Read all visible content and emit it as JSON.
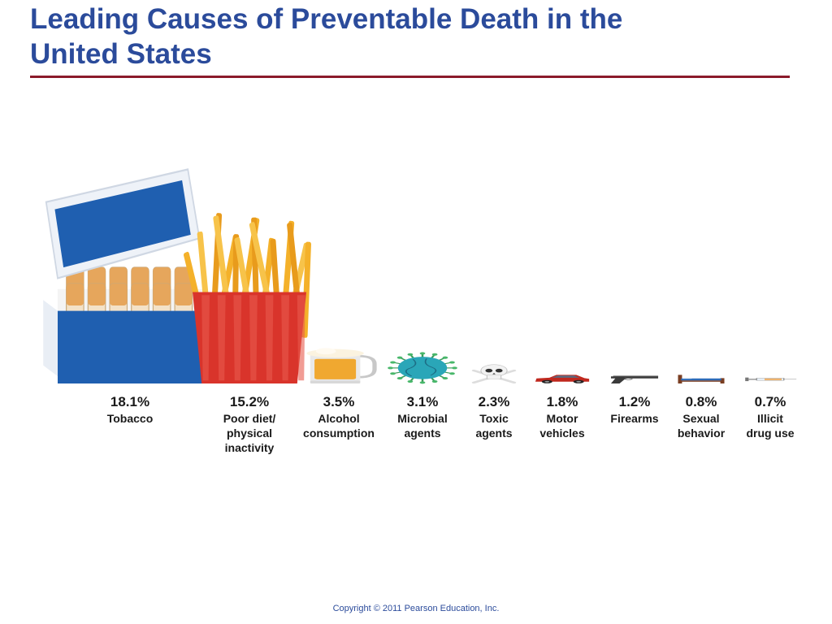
{
  "slide": {
    "title": "Leading Causes of Preventable Death in the\nUnited States",
    "footer": "Copyright © 2011 Pearson Education, Inc."
  },
  "chart_data": {
    "type": "bar",
    "title": "Leading Causes of Preventable Death in the United States",
    "xlabel": "",
    "ylabel": "",
    "unit": "%",
    "grid": false,
    "categories": [
      "Tobacco",
      "Poor diet/ physical inactivity",
      "Alcohol consumption",
      "Microbial agents",
      "Toxic agents",
      "Motor vehicles",
      "Firearms",
      "Sexual behavior",
      "Illicit drug use"
    ],
    "values": [
      18.1,
      15.2,
      3.5,
      3.1,
      2.3,
      1.8,
      1.2,
      0.8,
      0.7
    ],
    "value_labels": [
      "18.1%",
      "15.2%",
      "3.5%",
      "3.1%",
      "2.3%",
      "1.8%",
      "1.2%",
      "0.8%",
      "0.7%"
    ],
    "label_lines": [
      [
        "Tobacco"
      ],
      [
        "Poor diet/",
        "physical",
        "inactivity"
      ],
      [
        "Alcohol",
        "consumption"
      ],
      [
        "Microbial",
        "agents"
      ],
      [
        "Toxic",
        "agents"
      ],
      [
        "Motor",
        "vehicles"
      ],
      [
        "Firearms"
      ],
      [
        "Sexual",
        "behavior"
      ],
      [
        "Illicit",
        "drug use"
      ]
    ],
    "icons": [
      "cigarette-pack-icon",
      "french-fries-icon",
      "beer-mug-icon",
      "microbe-icon",
      "skull-crossbones-icon",
      "car-icon",
      "pistol-icon",
      "bed-icon",
      "syringe-icon"
    ]
  },
  "colors": {
    "title": "#2b4b9b",
    "rule": "#8b1a2a",
    "pack_blue": "#1f5fb0",
    "fries_red": "#d9342b",
    "fries_gold": "#f4b12a",
    "beer": "#f0a830",
    "microbe": "#2aa6b8",
    "car": "#c0281e"
  }
}
